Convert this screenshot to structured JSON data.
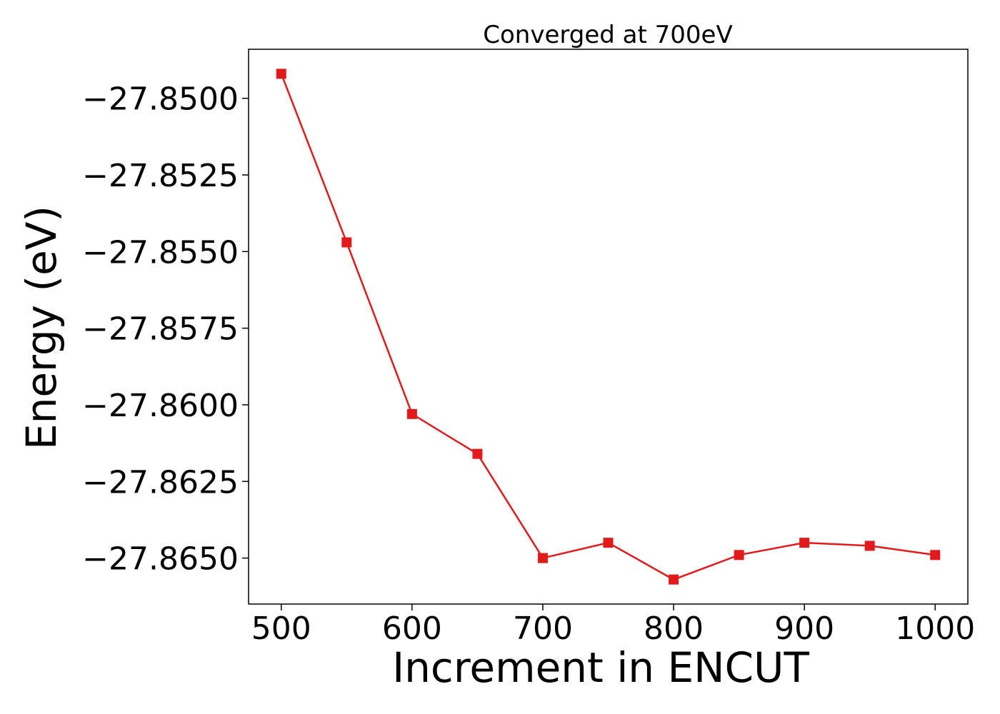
{
  "chart_data": {
    "type": "line",
    "title": "Converged at 700eV",
    "xlabel": "Increment in ENCUT",
    "ylabel": "Energy (eV)",
    "xlim": [
      475,
      1025
    ],
    "ylim": [
      -27.8665,
      -27.8484
    ],
    "x_ticks": [
      500,
      600,
      700,
      800,
      900,
      1000
    ],
    "x_tick_labels": [
      "500",
      "600",
      "700",
      "800",
      "900",
      "1000"
    ],
    "y_ticks": [
      -27.85,
      -27.8525,
      -27.855,
      -27.8575,
      -27.86,
      -27.8625,
      -27.865
    ],
    "y_tick_labels": [
      "−27.8500",
      "−27.8525",
      "−27.8550",
      "−27.8575",
      "−27.8600",
      "−27.8625",
      "−27.8650"
    ],
    "grid": false,
    "series": [
      {
        "color": "#e31a1c",
        "marker": "square",
        "x": [
          500,
          550,
          600,
          650,
          700,
          750,
          800,
          850,
          900,
          950,
          1000
        ],
        "y": [
          -27.8492,
          -27.8547,
          -27.8603,
          -27.8616,
          -27.865,
          -27.8645,
          -27.8657,
          -27.8649,
          -27.8645,
          -27.8646,
          -27.8649
        ]
      }
    ]
  }
}
